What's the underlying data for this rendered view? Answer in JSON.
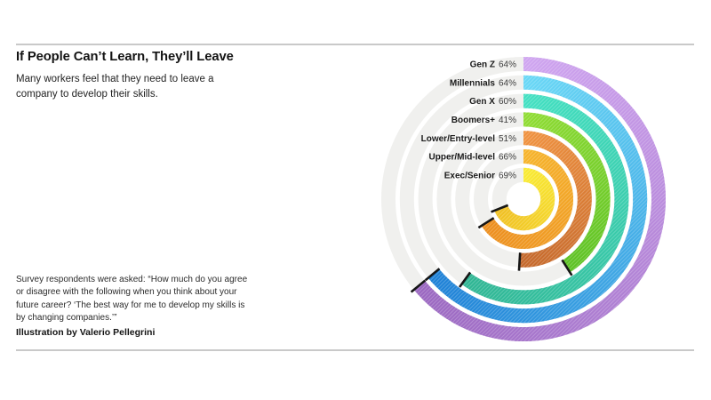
{
  "page": {
    "title": "If People Can’t Learn, They’ll Leave",
    "subtitle_lines": [
      "Many workers feel that they need to leave a",
      "company to develop their skills."
    ],
    "footnote_lines": [
      "Survey respondents were asked: “How much do you agree",
      "or disagree with the following when you think about your",
      "future career? ‘The best way for me to develop my skills is",
      "by changing companies.’”"
    ],
    "credit": "Illustration by Valerio Pellegrini"
  },
  "chart_data": {
    "type": "radial-bar",
    "title": "Share who agree, by group",
    "unit": "%",
    "max_value": 100,
    "start_angle_deg": 0,
    "direction": "clockwise",
    "ring_order": "outer-to-inner",
    "categories": [
      "Gen Z",
      "Millennials",
      "Gen X",
      "Boomers+",
      "Lower/Entry-level",
      "Upper/Mid-level",
      "Exec/Senior"
    ],
    "values": [
      64,
      64,
      60,
      41,
      51,
      66,
      69
    ],
    "ring_colors": [
      {
        "start": "#CFA5F0",
        "end": "#9A67C0"
      },
      {
        "start": "#69D8F6",
        "end": "#1E80D6"
      },
      {
        "start": "#43E0C2",
        "end": "#2FB593"
      },
      {
        "start": "#90DC32",
        "end": "#5CC124"
      },
      {
        "start": "#F0923F",
        "end": "#C3672B"
      },
      {
        "start": "#F6B42B",
        "end": "#EC8D1E"
      },
      {
        "start": "#F9EB33",
        "end": "#F0BF23"
      }
    ],
    "track_color": "#F0F0EE",
    "tick_color": "#161616",
    "label_text_color": "#1A1A1A",
    "value_text_color": "#3C3C3C"
  }
}
